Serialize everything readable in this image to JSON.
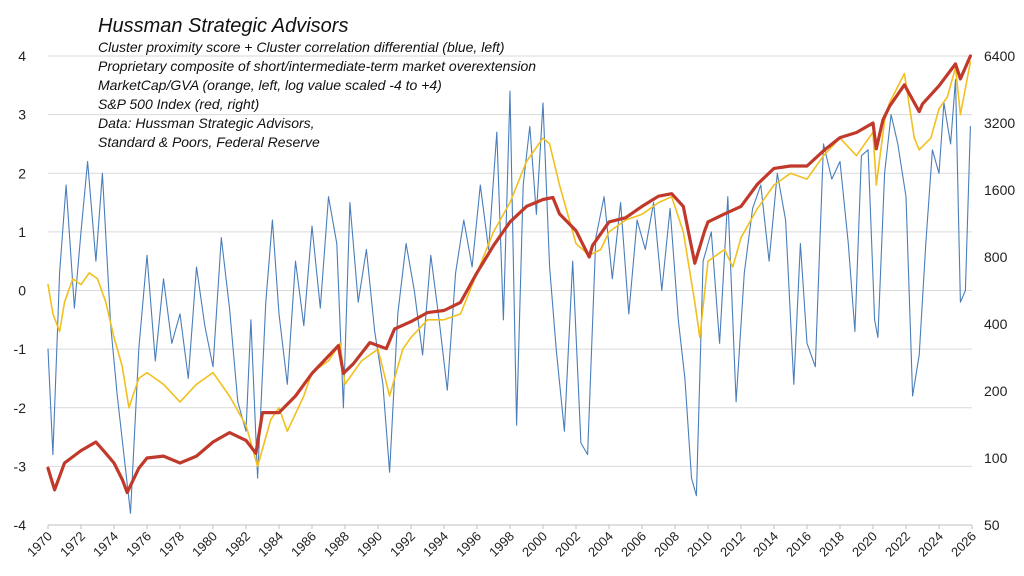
{
  "chart_data": {
    "type": "line",
    "title": "Hussman Strategic Advisors",
    "subtitle_lines": [
      "Cluster proximity score + Cluster correlation differential (blue, left)",
      "Proprietary composite of short/intermediate-term  market overextension",
      "MarketCap/GVA (orange, left, log value scaled -4 to +4)",
      "S&P 500 Index (red, right)",
      "Data: Hussman Strategic Advisors,",
      "Standard & Poors, Federal Reserve"
    ],
    "x_ticks": [
      "1970",
      "1972",
      "1974",
      "1976",
      "1978",
      "1980",
      "1982",
      "1984",
      "1986",
      "1988",
      "1990",
      "1992",
      "1994",
      "1996",
      "1998",
      "2000",
      "2002",
      "2004",
      "2006",
      "2008",
      "2010",
      "2012",
      "2014",
      "2016",
      "2018",
      "2020",
      "2022",
      "2024",
      "2026"
    ],
    "xlim": [
      1970,
      2026
    ],
    "y_left": {
      "ticks": [
        "4",
        "3",
        "2",
        "1",
        "0",
        "-1",
        "-2",
        "-3",
        "-4"
      ],
      "lim": [
        -4,
        4
      ]
    },
    "y_right": {
      "ticks": [
        "6400",
        "3200",
        "1600",
        "800",
        "400",
        "200",
        "100",
        "50"
      ],
      "lim": [
        50,
        6400
      ],
      "scale": "log"
    },
    "grid": true,
    "colors": {
      "blue": "#4a7ebb",
      "orange": "#f2c01e",
      "red": "#c0392b",
      "grid": "#d9d9d9",
      "axis_text": "#222222"
    },
    "series": [
      {
        "axis": "right",
        "x": [
          1970.0,
          1970.4,
          1971.0,
          1972.0,
          1972.9,
          1973.5,
          1974.0,
          1974.5,
          1974.8,
          1975.5,
          1976.0,
          1977.0,
          1978.0,
          1979.0,
          1980.0,
          1981.0,
          1982.0,
          1982.6,
          1983.0,
          1984.0,
          1985.0,
          1986.0,
          1987.6,
          1987.9,
          1988.5,
          1989.5,
          1990.5,
          1991.0,
          1992.0,
          1993.0,
          1994.0,
          1995.0,
          1996.0,
          1997.0,
          1998.0,
          1999.0,
          2000.0,
          2000.6,
          2001.0,
          2002.0,
          2002.8,
          2003.0,
          2004.0,
          2005.0,
          2006.0,
          2007.0,
          2007.8,
          2008.5,
          2009.2,
          2009.8,
          2010.0,
          2011.0,
          2012.0,
          2013.0,
          2014.0,
          2015.0,
          2016.0,
          2017.0,
          2018.0,
          2019.0,
          2020.0,
          2020.2,
          2020.6,
          2021.0,
          2021.9,
          2022.8,
          2023.0,
          2024.0,
          2025.0,
          2025.3,
          2025.9
        ],
        "values": [
          90,
          72,
          95,
          108,
          118,
          105,
          95,
          80,
          70,
          90,
          100,
          102,
          95,
          102,
          118,
          130,
          120,
          105,
          160,
          160,
          190,
          240,
          320,
          240,
          265,
          330,
          310,
          380,
          410,
          450,
          460,
          500,
          680,
          900,
          1150,
          1350,
          1450,
          1480,
          1250,
          1050,
          800,
          900,
          1150,
          1200,
          1350,
          1500,
          1540,
          1350,
          750,
          1050,
          1150,
          1250,
          1350,
          1700,
          2000,
          2050,
          2050,
          2400,
          2750,
          2900,
          3200,
          2450,
          3300,
          3800,
          4750,
          3600,
          3900,
          4700,
          5900,
          5050,
          6400
        ]
      },
      {
        "axis": "left",
        "x": [
          1970.0,
          1970.3,
          1970.7,
          1971.0,
          1971.5,
          1972.0,
          1972.5,
          1973.0,
          1973.5,
          1974.0,
          1974.5,
          1974.9,
          1975.5,
          1976.0,
          1977.0,
          1978.0,
          1979.0,
          1980.0,
          1981.0,
          1982.0,
          1982.7,
          1983.5,
          1984.0,
          1984.5,
          1985.5,
          1986.0,
          1987.0,
          1987.7,
          1988.0,
          1989.0,
          1990.0,
          1990.7,
          1991.5,
          1992.0,
          1993.0,
          1994.0,
          1995.0,
          1996.0,
          1997.0,
          1998.0,
          1999.0,
          2000.0,
          2000.4,
          2001.0,
          2002.0,
          2002.8,
          2003.5,
          2004.0,
          2005.0,
          2006.0,
          2007.0,
          2007.8,
          2008.5,
          2009.2,
          2009.5,
          2010.0,
          2011.0,
          2011.5,
          2012.0,
          2013.0,
          2014.0,
          2015.0,
          2016.0,
          2017.0,
          2018.0,
          2019.0,
          2020.0,
          2020.2,
          2020.7,
          2021.0,
          2021.9,
          2022.5,
          2022.8,
          2023.5,
          2024.0,
          2024.5,
          2025.0,
          2025.3,
          2025.9
        ],
        "values": [
          0.1,
          -0.4,
          -0.7,
          -0.2,
          0.2,
          0.1,
          0.3,
          0.2,
          -0.2,
          -0.8,
          -1.3,
          -2.0,
          -1.5,
          -1.4,
          -1.6,
          -1.9,
          -1.6,
          -1.4,
          -1.8,
          -2.3,
          -3.0,
          -2.2,
          -2.0,
          -2.4,
          -1.8,
          -1.4,
          -1.2,
          -0.9,
          -1.6,
          -1.2,
          -1.0,
          -1.8,
          -1.0,
          -0.8,
          -0.5,
          -0.5,
          -0.4,
          0.3,
          1.0,
          1.5,
          2.2,
          2.6,
          2.5,
          1.8,
          0.8,
          0.6,
          0.7,
          1.0,
          1.2,
          1.3,
          1.5,
          1.6,
          1.0,
          -0.2,
          -0.8,
          0.5,
          0.7,
          0.4,
          0.9,
          1.4,
          1.8,
          2.0,
          1.9,
          2.3,
          2.6,
          2.3,
          2.7,
          1.8,
          2.9,
          3.2,
          3.7,
          2.6,
          2.4,
          2.6,
          3.1,
          3.3,
          3.8,
          3.0,
          3.9
        ]
      },
      {
        "axis": "left",
        "x": [
          1970.0,
          1970.3,
          1970.7,
          1971.1,
          1971.6,
          1972.0,
          1972.4,
          1972.9,
          1973.3,
          1973.8,
          1974.2,
          1974.6,
          1975.0,
          1975.5,
          1976.0,
          1976.5,
          1977.0,
          1977.5,
          1978.0,
          1978.5,
          1979.0,
          1979.5,
          1980.0,
          1980.5,
          1981.0,
          1981.5,
          1982.0,
          1982.3,
          1982.7,
          1983.2,
          1983.6,
          1984.0,
          1984.5,
          1985.0,
          1985.5,
          1986.0,
          1986.5,
          1987.0,
          1987.5,
          1987.9,
          1988.3,
          1988.8,
          1989.3,
          1989.8,
          1990.3,
          1990.7,
          1991.2,
          1991.7,
          1992.2,
          1992.7,
          1993.2,
          1993.7,
          1994.2,
          1994.7,
          1995.2,
          1995.7,
          1996.2,
          1996.7,
          1997.2,
          1997.6,
          1998.0,
          1998.4,
          1998.8,
          1999.2,
          1999.6,
          2000.0,
          2000.4,
          2000.8,
          2001.3,
          2001.8,
          2002.3,
          2002.7,
          2003.2,
          2003.7,
          2004.2,
          2004.7,
          2005.2,
          2005.7,
          2006.2,
          2006.7,
          2007.2,
          2007.7,
          2008.2,
          2008.6,
          2009.0,
          2009.3,
          2009.7,
          2010.2,
          2010.7,
          2011.2,
          2011.7,
          2012.2,
          2012.7,
          2013.2,
          2013.7,
          2014.2,
          2014.7,
          2015.2,
          2015.6,
          2016.0,
          2016.5,
          2017.0,
          2017.5,
          2018.0,
          2018.5,
          2018.9,
          2019.3,
          2019.7,
          2020.1,
          2020.3,
          2020.7,
          2021.1,
          2021.5,
          2022.0,
          2022.4,
          2022.8,
          2023.2,
          2023.6,
          2024.0,
          2024.3,
          2024.7,
          2025.0,
          2025.3,
          2025.6,
          2025.9
        ],
        "values": [
          -1.0,
          -2.8,
          0.3,
          1.8,
          -0.3,
          1.0,
          2.2,
          0.5,
          2.0,
          -0.6,
          -1.8,
          -2.8,
          -3.8,
          -1.0,
          0.6,
          -1.2,
          0.2,
          -0.9,
          -0.4,
          -1.5,
          0.4,
          -0.6,
          -1.3,
          0.9,
          -0.3,
          -1.9,
          -2.4,
          -0.5,
          -3.2,
          -0.2,
          1.2,
          -0.4,
          -1.6,
          0.5,
          -0.6,
          1.1,
          -0.3,
          1.6,
          0.8,
          -2.0,
          1.5,
          -0.2,
          0.7,
          -0.7,
          -1.6,
          -3.1,
          -0.4,
          0.8,
          0.0,
          -1.1,
          0.6,
          -0.5,
          -1.7,
          0.3,
          1.2,
          0.4,
          1.8,
          0.7,
          2.7,
          -0.5,
          3.4,
          -2.3,
          1.8,
          2.8,
          1.3,
          3.2,
          0.4,
          -1.0,
          -2.4,
          0.5,
          -2.6,
          -2.8,
          0.9,
          1.6,
          0.2,
          1.5,
          -0.4,
          1.2,
          0.7,
          1.5,
          0.0,
          1.4,
          -0.5,
          -1.5,
          -3.2,
          -3.5,
          0.5,
          1.0,
          -0.9,
          1.6,
          -1.9,
          0.3,
          1.4,
          1.8,
          0.5,
          2.0,
          1.2,
          -1.6,
          0.8,
          -0.9,
          -1.3,
          2.5,
          1.9,
          2.2,
          0.8,
          -0.7,
          2.3,
          2.4,
          -0.5,
          -0.8,
          2.0,
          3.0,
          2.5,
          1.6,
          -1.8,
          -1.1,
          0.8,
          2.4,
          2.0,
          3.2,
          2.5,
          3.6,
          -0.2,
          0.0,
          2.8
        ]
      }
    ]
  }
}
